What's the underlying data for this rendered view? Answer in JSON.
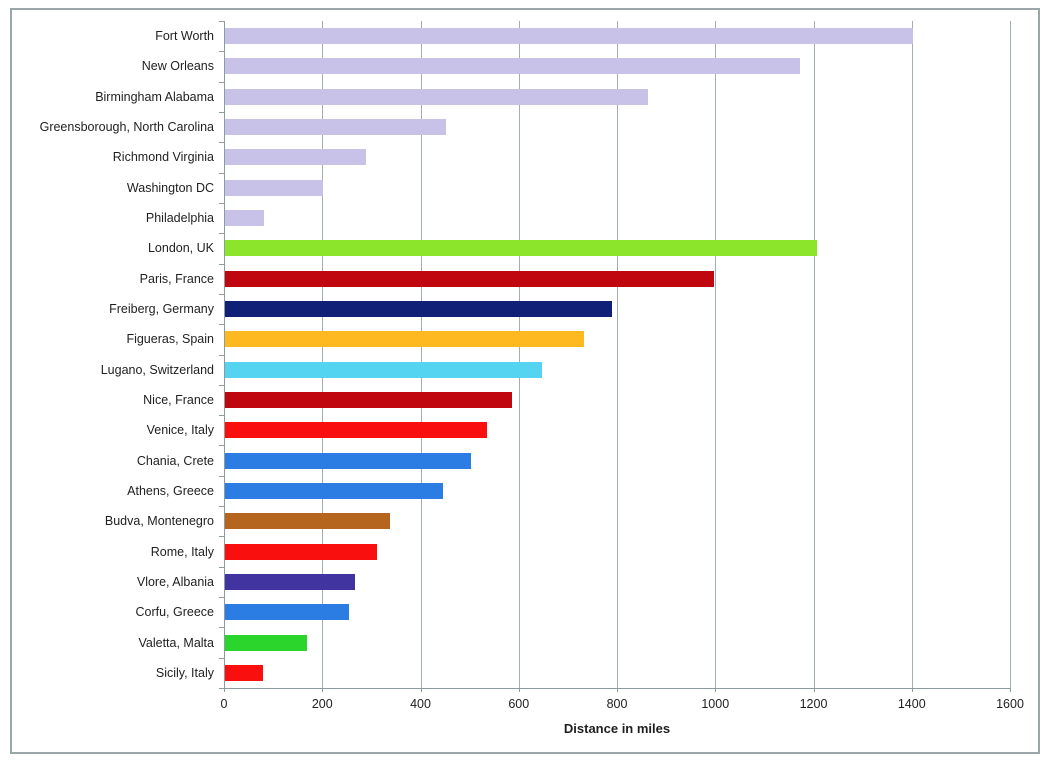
{
  "chart_data": {
    "type": "bar",
    "orientation": "horizontal",
    "title": "",
    "xlabel": "Distance in miles",
    "ylabel": "",
    "xlim": [
      0,
      1600
    ],
    "xticks": [
      0,
      200,
      400,
      600,
      800,
      1000,
      1200,
      1400,
      1600
    ],
    "grid": "vertical-gridlines-on",
    "legend": "none",
    "categories": [
      "Fort Worth",
      "New Orleans",
      "Birmingham Alabama",
      "Greensborough, North Carolina",
      "Richmond Virginia",
      "Washington DC",
      "Philadelphia",
      "London, UK",
      "Paris, France",
      "Freiberg, Germany",
      "Figueras, Spain",
      "Lugano, Switzerland",
      "Nice, France",
      "Venice, Italy",
      "Chania, Crete",
      "Athens, Greece",
      "Budva, Montenegro",
      "Rome, Italy",
      "Vlore, Albania",
      "Corfu, Greece",
      "Valetta, Malta",
      "Sicily, Italy"
    ],
    "values": [
      1400,
      1170,
      862,
      450,
      288,
      200,
      80,
      1205,
      995,
      788,
      730,
      645,
      585,
      533,
      500,
      443,
      335,
      310,
      265,
      253,
      167,
      78
    ],
    "bar_colors": [
      "#C8C1E8",
      "#C8C1E8",
      "#C8C1E8",
      "#C8C1E8",
      "#C8C1E8",
      "#C8C1E8",
      "#C8C1E8",
      "#8DE52B",
      "#C00710",
      "#0F2076",
      "#FFB920",
      "#55D4F2",
      "#C00710",
      "#FA0F0F",
      "#2B7DE4",
      "#2B7DE4",
      "#B5651E",
      "#FA0F0F",
      "#4134A0",
      "#2B7DE4",
      "#2BD52B",
      "#FA0F0F"
    ]
  },
  "styles": {
    "frame_border_color": "#9AA7A8",
    "gridline_color": "#A3AEB0",
    "axis_line_color": "#8C9B9D",
    "text_color": "#1F1F1F",
    "background_color": "#FFFFFF"
  }
}
